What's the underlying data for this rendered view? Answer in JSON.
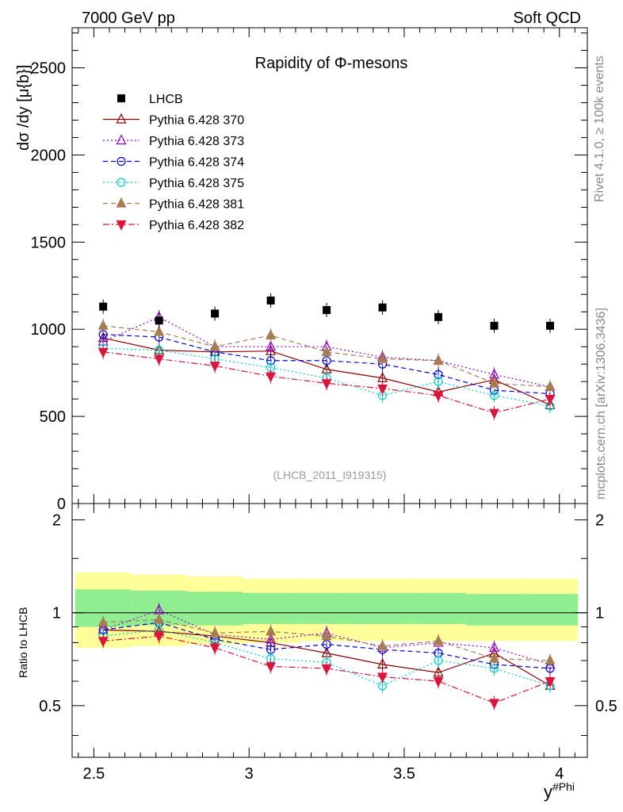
{
  "header": {
    "left": "7000 GeV pp",
    "right": "Soft QCD",
    "side_top": "Rivet 4.1.0, ≥ 100k events",
    "side_bottom": "mcplots.cern.ch [arXiv:1306.3436]"
  },
  "chart_data": [
    {
      "type": "scatter",
      "panel": "main",
      "title": "Rapidity of Φ-mesons",
      "ylabel": "dσ /dy [μ{b}]",
      "watermark": "(LHCB_2011_I919315)",
      "xlim": [
        2.43,
        4.09
      ],
      "ylim": [
        0,
        2730
      ],
      "yticks": [
        0,
        500,
        1000,
        1500,
        2000,
        2500
      ],
      "ytick_labels": [
        "0",
        "500",
        "1000",
        "1500",
        "2000",
        "2500"
      ],
      "x": [
        2.53,
        2.71,
        2.89,
        3.07,
        3.25,
        3.43,
        3.61,
        3.79,
        3.97
      ],
      "series": [
        {
          "name": "LHCB",
          "color": "#000000",
          "marker": "square",
          "line": "none",
          "values": [
            1130,
            1050,
            1090,
            1165,
            1110,
            1125,
            1070,
            1020,
            1020
          ]
        },
        {
          "name": "Pythia 6.428 370",
          "color": "#8b0000",
          "marker": "triangle-up-open",
          "line": "solid",
          "values": [
            950,
            880,
            870,
            875,
            770,
            720,
            640,
            710,
            565
          ]
        },
        {
          "name": "Pythia 6.428 373",
          "color": "#9400d3",
          "marker": "triangle-up-open",
          "line": "dotted",
          "values": [
            930,
            1070,
            900,
            900,
            900,
            840,
            820,
            740,
            670
          ]
        },
        {
          "name": "Pythia 6.428 374",
          "color": "#0000dd",
          "marker": "circle-open",
          "line": "dashed",
          "values": [
            970,
            955,
            870,
            820,
            820,
            800,
            740,
            650,
            630
          ]
        },
        {
          "name": "Pythia 6.428 375",
          "color": "#00ced1",
          "marker": "circle-open",
          "line": "dotted",
          "values": [
            890,
            880,
            830,
            780,
            720,
            620,
            700,
            620,
            560
          ]
        },
        {
          "name": "Pythia 6.428 381",
          "color": "#a67c52",
          "marker": "triangle-up-filled",
          "line": "dashed",
          "values": [
            1020,
            985,
            900,
            965,
            870,
            830,
            820,
            690,
            670
          ]
        },
        {
          "name": "Pythia 6.428 382",
          "color": "#dc143c",
          "marker": "triangle-down-filled",
          "line": "dashdot",
          "values": [
            870,
            830,
            790,
            730,
            690,
            660,
            620,
            520,
            600
          ]
        }
      ]
    },
    {
      "type": "scatter",
      "panel": "ratio",
      "ylabel": "Ratio to LHCB",
      "xlabel": "y#Phi",
      "xlabel_main": "y",
      "xlabel_sup": "#Phi",
      "xlim": [
        2.43,
        4.09
      ],
      "ylim": [
        0.34,
        2.26
      ],
      "xticks": [
        2.5,
        3,
        3.5,
        4
      ],
      "xtick_labels": [
        "2.5",
        "3",
        "3.5",
        "4"
      ],
      "yticks": [
        0.5,
        1,
        2
      ],
      "ytick_labels": [
        "0.5",
        "1",
        "2"
      ],
      "x": [
        2.53,
        2.71,
        2.89,
        3.07,
        3.25,
        3.43,
        3.61,
        3.79,
        3.97
      ],
      "bands": {
        "green": {
          "color": "#90ee90",
          "lo": [
            0.9,
            0.91,
            0.91,
            0.92,
            0.92,
            0.92,
            0.92,
            0.91,
            0.91
          ],
          "hi": [
            1.19,
            1.18,
            1.17,
            1.16,
            1.16,
            1.16,
            1.16,
            1.15,
            1.15
          ]
        },
        "yellow": {
          "color": "#ffff99",
          "lo": [
            0.77,
            0.78,
            0.79,
            0.8,
            0.81,
            0.81,
            0.81,
            0.81,
            0.81
          ],
          "hi": [
            1.35,
            1.33,
            1.31,
            1.29,
            1.29,
            1.29,
            1.29,
            1.29,
            1.29
          ]
        }
      },
      "series": [
        {
          "name": "Pythia 6.428 370",
          "values": [
            0.88,
            0.87,
            0.84,
            0.8,
            0.74,
            0.68,
            0.64,
            0.74,
            0.58
          ]
        },
        {
          "name": "Pythia 6.428 373",
          "values": [
            0.88,
            1.02,
            0.85,
            0.82,
            0.86,
            0.77,
            0.8,
            0.77,
            0.68
          ]
        },
        {
          "name": "Pythia 6.428 374",
          "values": [
            0.88,
            0.93,
            0.82,
            0.76,
            0.79,
            0.76,
            0.74,
            0.68,
            0.66
          ]
        },
        {
          "name": "Pythia 6.428 375",
          "values": [
            0.84,
            0.88,
            0.8,
            0.71,
            0.69,
            0.58,
            0.7,
            0.66,
            0.58
          ]
        },
        {
          "name": "Pythia 6.428 381",
          "values": [
            0.93,
            0.95,
            0.86,
            0.87,
            0.84,
            0.78,
            0.81,
            0.71,
            0.7
          ]
        },
        {
          "name": "Pythia 6.428 382",
          "values": [
            0.81,
            0.84,
            0.77,
            0.67,
            0.66,
            0.62,
            0.6,
            0.51,
            0.6
          ]
        }
      ]
    }
  ]
}
